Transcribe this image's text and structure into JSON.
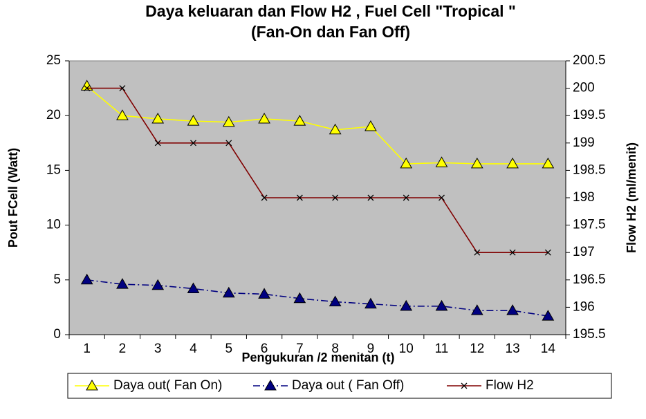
{
  "chart_data": {
    "type": "line",
    "title": [
      "Daya keluaran  dan Flow H2 , Fuel Cell \"Tropical \"",
      "(Fan-On dan Fan Off)"
    ],
    "xlabel": "Pengukuran /2 menitan (t)",
    "ylabel": "Pout FCell  (Watt)",
    "y2label": "Flow H2 (ml/menit)",
    "categories": [
      "1",
      "2",
      "3",
      "4",
      "5",
      "6",
      "7",
      "8",
      "9",
      "10",
      "11",
      "12",
      "13",
      "14"
    ],
    "series": [
      {
        "name": "Daya out( Fan On)",
        "color": "#ffff00",
        "marker": "triangle",
        "marker_fill": "#ffff00",
        "dash": "solid",
        "values": [
          22.7,
          20,
          19.7,
          19.5,
          19.4,
          19.7,
          19.5,
          18.7,
          19,
          15.6,
          15.7,
          15.6,
          15.6,
          15.6
        ]
      },
      {
        "name": "Daya out ( Fan Off)",
        "color": "#000080",
        "marker": "triangle",
        "marker_fill": "#000080",
        "dash": "dashdot",
        "values": [
          5,
          4.6,
          4.5,
          4.2,
          3.8,
          3.7,
          3.3,
          3.0,
          2.8,
          2.6,
          2.6,
          2.2,
          2.2,
          1.7
        ]
      },
      {
        "name": "Flow H2",
        "color": "#800000",
        "marker": "x",
        "marker_fill": "#000000",
        "dash": "solid",
        "axis": "y2",
        "values": [
          200,
          200,
          199,
          199,
          199,
          198,
          198,
          198,
          198,
          198,
          198,
          197,
          197,
          197
        ]
      }
    ],
    "ylim": [
      0,
      25
    ],
    "yticks": [
      0,
      5,
      10,
      15,
      20,
      25
    ],
    "y2lim": [
      195.5,
      200.5
    ],
    "y2ticks": [
      195.5,
      196,
      196.5,
      197,
      197.5,
      198,
      198.5,
      199,
      199.5,
      200,
      200.5
    ],
    "plot_background": "#c0c0c0",
    "legend": "bottom"
  }
}
